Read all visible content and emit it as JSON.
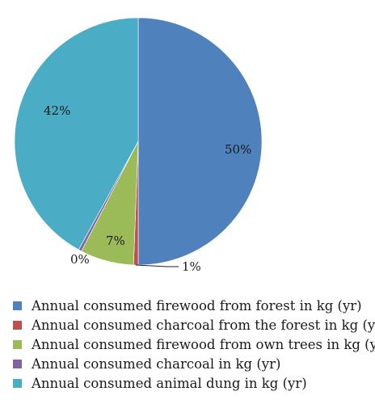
{
  "chart_data": {
    "type": "pie",
    "legend_position": "bottom",
    "slices": [
      {
        "label": "Annual consumed firewood from forest in kg (yr)",
        "value": 50,
        "display": "50%",
        "color": "#4f81bd"
      },
      {
        "label": "Annual consumed charcoal from the forest in kg (yr)",
        "value": 0.6,
        "display": "1%",
        "color": "#c0504d"
      },
      {
        "label": "Annual consumed firewood from own trees in kg (yr)",
        "value": 7,
        "display": "7%",
        "color": "#9bbb59"
      },
      {
        "label": "Annual consumed charcoal in kg (yr)",
        "value": 0.4,
        "display": "0%",
        "color": "#8064a2"
      },
      {
        "label": "Annual consumed animal dung in kg (yr)",
        "value": 42,
        "display": "42%",
        "color": "#4bacc6"
      }
    ]
  }
}
